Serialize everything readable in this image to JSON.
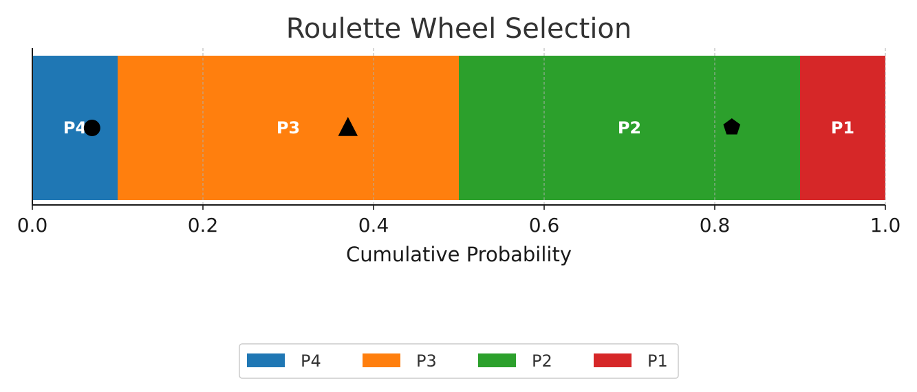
{
  "chart_data": {
    "type": "bar",
    "orientation": "horizontal-stacked",
    "title": "Roulette Wheel Selection",
    "xlabel": "Cumulative Probability",
    "ylabel": "",
    "xlim": [
      0,
      1
    ],
    "x_ticks": [
      0.0,
      0.2,
      0.4,
      0.6,
      0.8,
      1.0
    ],
    "x_tick_labels": [
      "0.0",
      "0.2",
      "0.4",
      "0.6",
      "0.8",
      "1.0"
    ],
    "grid": "vertical-dashed",
    "legend_position": "bottom-center",
    "segments": [
      {
        "label": "P4",
        "start": 0.0,
        "end": 0.1,
        "color": "#1f77b4"
      },
      {
        "label": "P3",
        "start": 0.1,
        "end": 0.5,
        "color": "#ff7f0e"
      },
      {
        "label": "P2",
        "start": 0.5,
        "end": 0.9,
        "color": "#2ca02c"
      },
      {
        "label": "P1",
        "start": 0.9,
        "end": 1.0,
        "color": "#d62728"
      }
    ],
    "markers": [
      {
        "x": 0.07,
        "shape": "circle"
      },
      {
        "x": 0.37,
        "shape": "triangle"
      },
      {
        "x": 0.82,
        "shape": "pentagon"
      }
    ],
    "legend": [
      "P4",
      "P3",
      "P2",
      "P1"
    ]
  }
}
